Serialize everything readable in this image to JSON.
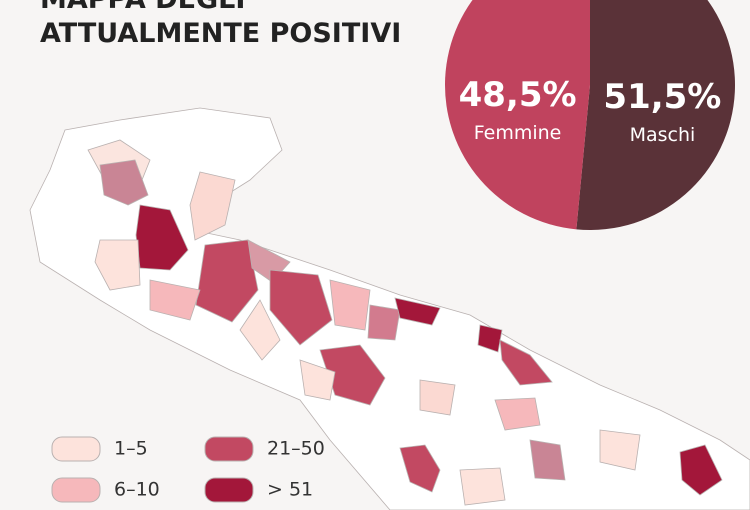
{
  "title": [
    "MAPPA DEGLI",
    "ATTUALMENTE POSITIVI"
  ],
  "chart_data": {
    "type": "pie",
    "categories": [
      "Femmine",
      "Maschi"
    ],
    "values": [
      48.5,
      51.5
    ],
    "value_labels": [
      "48,5%",
      "51,5%"
    ],
    "colors": [
      "#c0435e",
      "#5a3238"
    ]
  },
  "map_legend": {
    "labels": [
      "1–5",
      "6–10",
      "21–50",
      "> 51"
    ],
    "colors": [
      "#fde3dc",
      "#f6b8bb",
      "#c24962",
      "#a3173a"
    ]
  }
}
